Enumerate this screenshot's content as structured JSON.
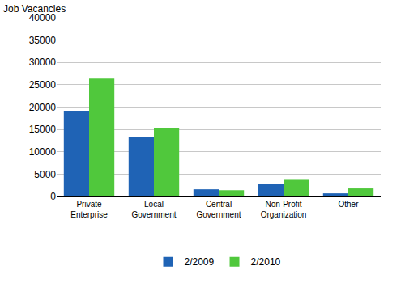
{
  "chart_data": {
    "type": "bar",
    "y_label": "Job Vacancies",
    "categories": [
      "Private Enterprise",
      "Local Government",
      "Central Government",
      "Non-Profit Organization",
      "Other"
    ],
    "series": [
      {
        "name": "2/2009",
        "color": "#1f63b5",
        "values": [
          19200,
          13400,
          1600,
          2900,
          700
        ]
      },
      {
        "name": "2/2010",
        "color": "#50c83c",
        "values": [
          26400,
          15400,
          1400,
          3900,
          1800
        ]
      }
    ],
    "ylim": [
      0,
      40000
    ],
    "yticks": [
      0,
      5000,
      10000,
      15000,
      20000,
      25000,
      30000,
      35000,
      40000
    ],
    "grid": true,
    "legend": "bottom"
  }
}
